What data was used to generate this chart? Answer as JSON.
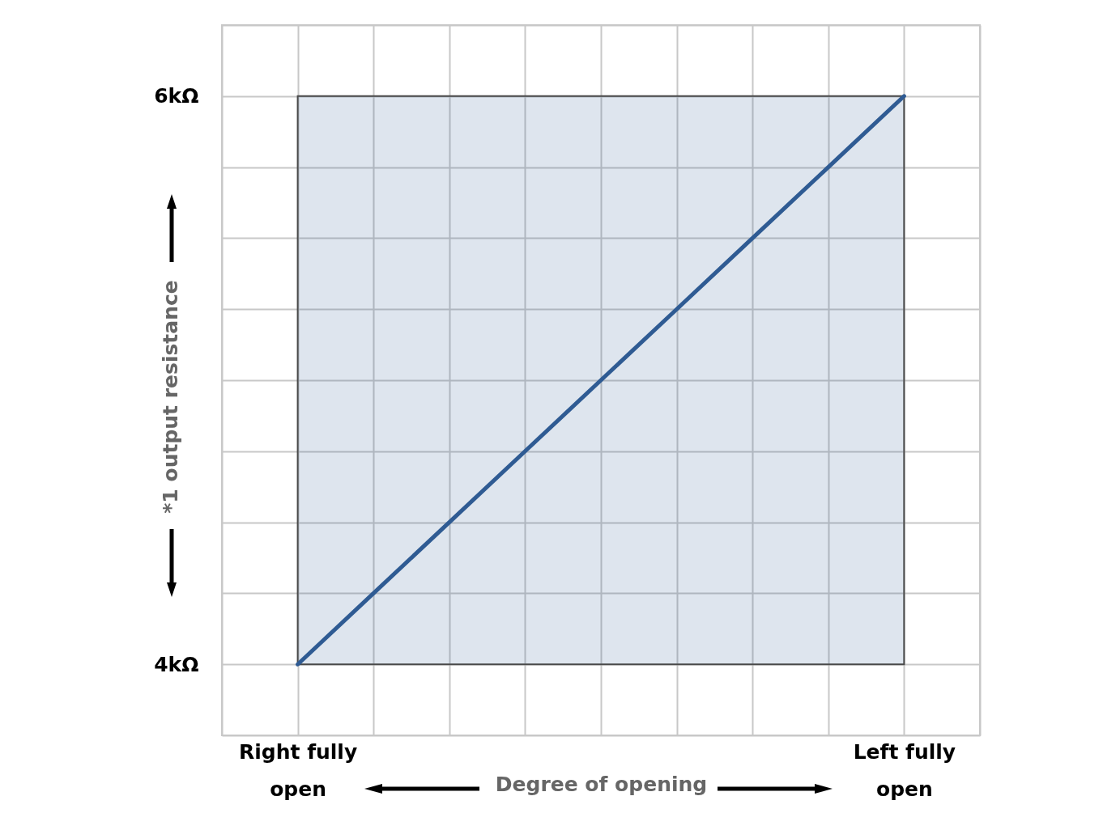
{
  "chart_data": {
    "type": "line",
    "xlabel": "Degree of opening",
    "ylabel": "*1 output resistance",
    "categories": [
      null,
      "Right fully open",
      null,
      null,
      null,
      null,
      null,
      null,
      null,
      "Left fully open",
      null
    ],
    "ylim": [
      3.75,
      6.25
    ],
    "yticks": [
      {
        "value": 3.75,
        "label": null
      },
      {
        "value": 4,
        "label": "4kΩ"
      },
      {
        "value": 4.25,
        "label": null
      },
      {
        "value": 4.5,
        "label": null
      },
      {
        "value": 4.75,
        "label": null
      },
      {
        "value": 5,
        "label": null
      },
      {
        "value": 5.25,
        "label": null
      },
      {
        "value": 5.5,
        "label": null
      },
      {
        "value": 5.75,
        "label": null
      },
      {
        "value": 6,
        "label": "6kΩ"
      },
      {
        "value": 6.25,
        "label": null
      }
    ],
    "grid": true,
    "series": [
      {
        "color": "#2f5b93",
        "values": [
          null,
          4,
          4.25,
          4.5,
          4.75,
          5,
          5.25,
          5.5,
          5.75,
          6,
          null
        ],
        "lower": [
          null,
          4,
          4,
          4,
          4,
          4,
          4,
          4,
          4,
          4,
          null
        ],
        "upper": [
          null,
          6,
          6,
          6,
          6,
          6,
          6,
          6,
          6,
          6,
          null
        ]
      }
    ]
  }
}
